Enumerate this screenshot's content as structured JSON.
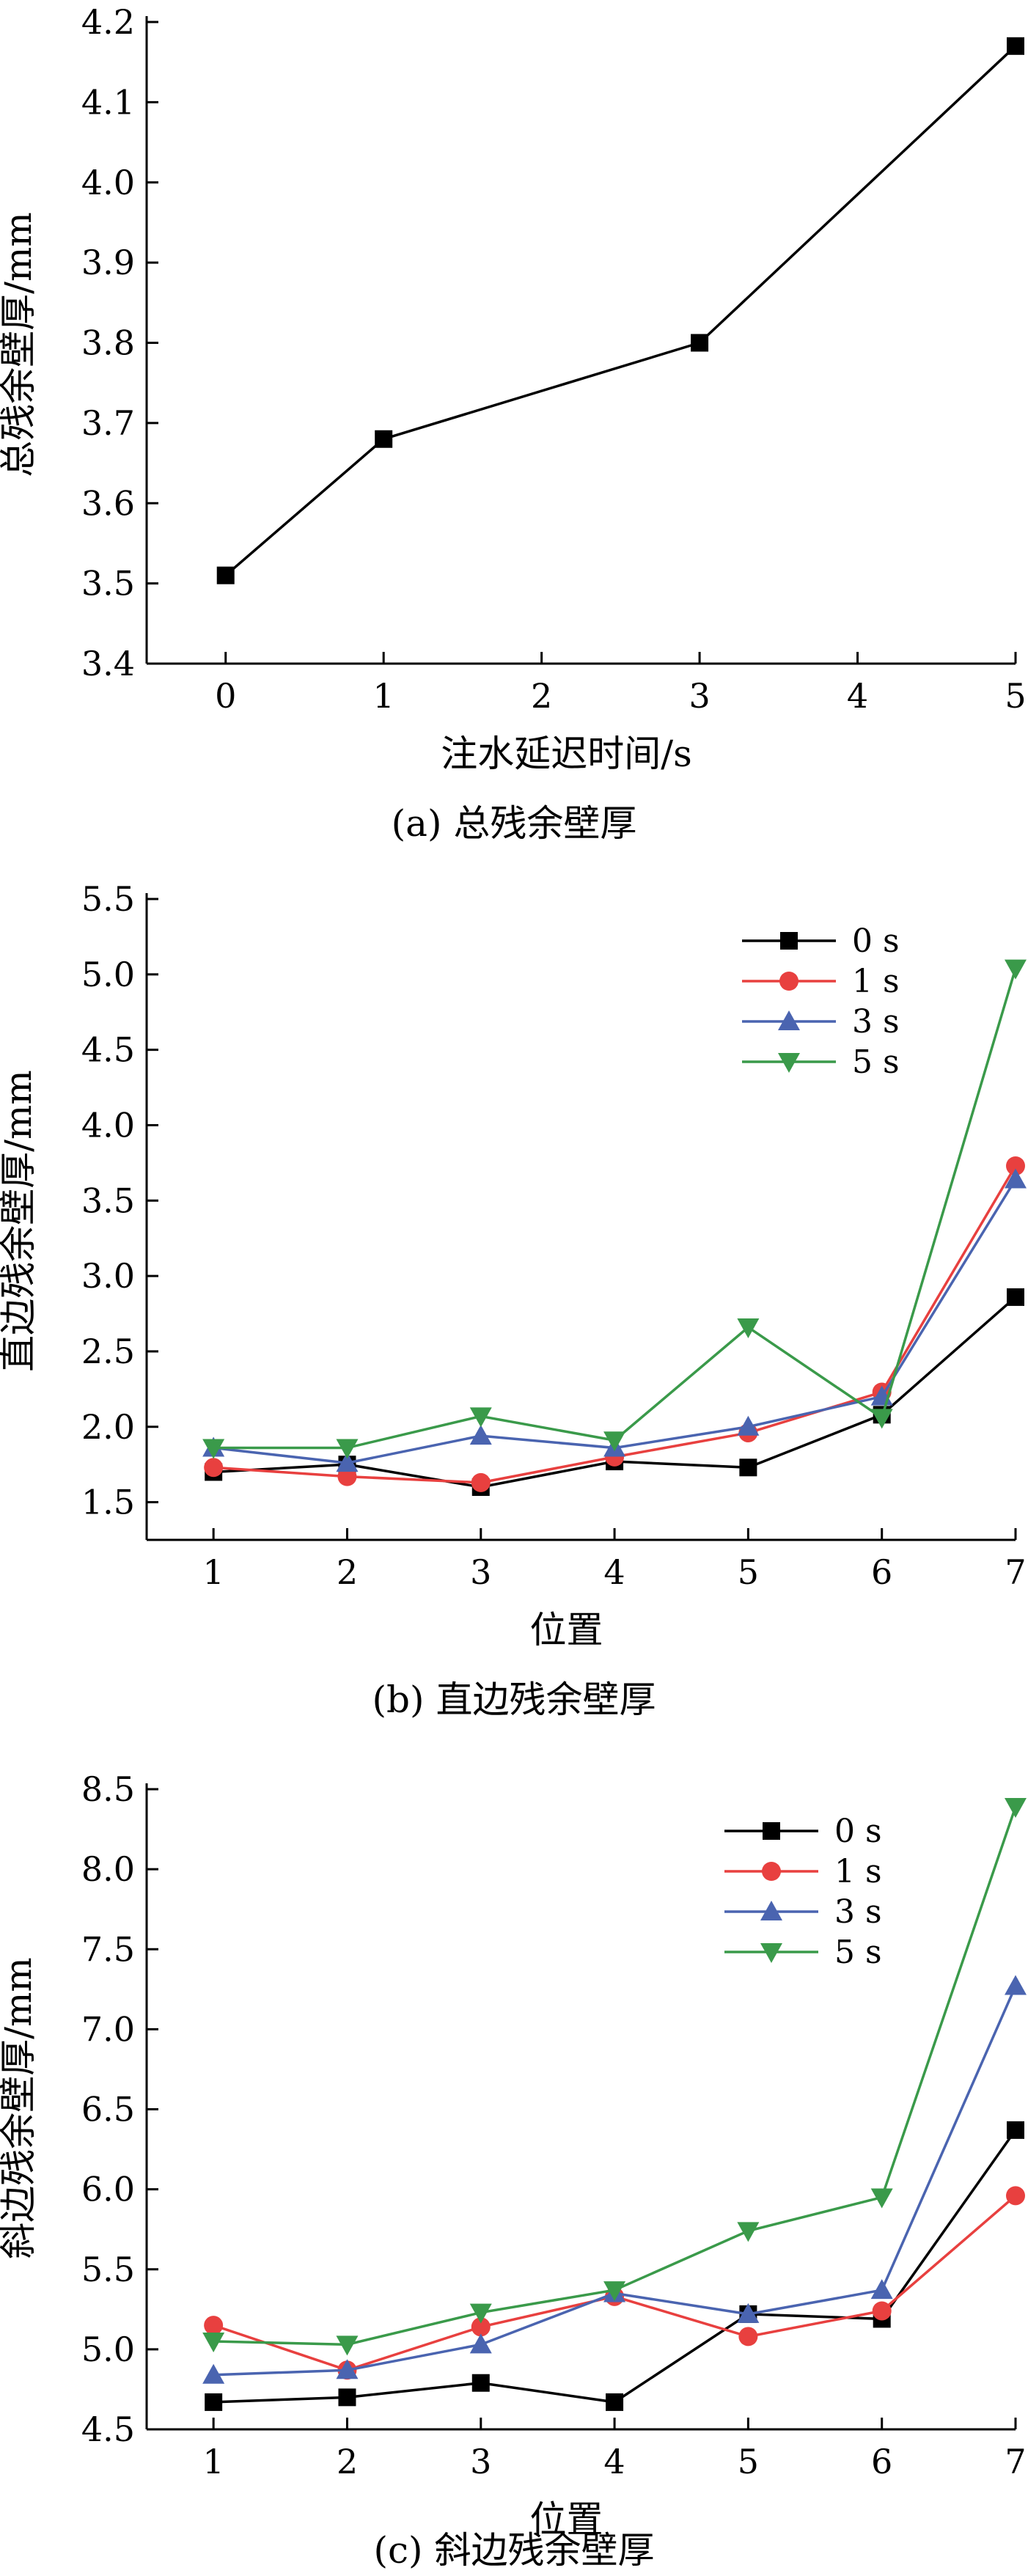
{
  "chart_data": [
    {
      "type": "line",
      "title": "",
      "caption": "(a) 总残余壁厚",
      "xlabel": "注水延迟时间/s",
      "ylabel": "总残余壁厚/mm",
      "xlim": [
        -0.5,
        5
      ],
      "ylim": [
        3.4,
        4.2
      ],
      "x_ticks": [
        0,
        1,
        2,
        3,
        4,
        5
      ],
      "y_ticks": [
        3.4,
        3.5,
        3.6,
        3.7,
        3.8,
        3.9,
        4.0,
        4.1,
        4.2
      ],
      "x_tick_labels": [
        "0",
        "1",
        "2",
        "3",
        "4",
        "5"
      ],
      "y_tick_labels": [
        "3.4",
        "3.5",
        "3.6",
        "3.7",
        "3.8",
        "3.9",
        "4.0",
        "4.1",
        "4.2"
      ],
      "grid": false,
      "legend": null,
      "series": [
        {
          "name": "",
          "color": "#000000",
          "marker": "square",
          "x": [
            0,
            1,
            3,
            5
          ],
          "y": [
            3.51,
            3.68,
            3.8,
            4.17
          ]
        }
      ]
    },
    {
      "type": "line",
      "title": "",
      "caption": "(b) 直边残余壁厚",
      "xlabel": "位置",
      "ylabel": "直边残余壁厚/mm",
      "xlim": [
        0.5,
        7
      ],
      "ylim": [
        1.25,
        5.5
      ],
      "x_ticks": [
        1,
        2,
        3,
        4,
        5,
        6,
        7
      ],
      "y_ticks": [
        1.5,
        2.0,
        2.5,
        3.0,
        3.5,
        4.0,
        4.5,
        5.0,
        5.5
      ],
      "x_tick_labels": [
        "1",
        "2",
        "3",
        "4",
        "5",
        "6",
        "7"
      ],
      "y_tick_labels": [
        "1.5",
        "2.0",
        "2.5",
        "3.0",
        "3.5",
        "4.0",
        "4.5",
        "5.0",
        "5.5"
      ],
      "grid": false,
      "legend": "top-right",
      "series": [
        {
          "name": "0 s",
          "color": "#000000",
          "marker": "square",
          "x": [
            1,
            2,
            3,
            4,
            5,
            6,
            7
          ],
          "y": [
            1.7,
            1.75,
            1.6,
            1.77,
            1.73,
            2.08,
            2.86
          ]
        },
        {
          "name": "1 s",
          "color": "#e8403f",
          "marker": "circle",
          "x": [
            1,
            2,
            3,
            4,
            5,
            6,
            7
          ],
          "y": [
            1.73,
            1.67,
            1.63,
            1.8,
            1.96,
            2.23,
            3.73
          ]
        },
        {
          "name": "3 s",
          "color": "#4a64b0",
          "marker": "triangle-up",
          "x": [
            1,
            2,
            3,
            4,
            5,
            6,
            7
          ],
          "y": [
            1.86,
            1.76,
            1.94,
            1.86,
            2.0,
            2.2,
            3.64
          ]
        },
        {
          "name": "5 s",
          "color": "#3a9a4a",
          "marker": "triangle-down",
          "x": [
            1,
            2,
            3,
            4,
            5,
            6,
            7
          ],
          "y": [
            1.86,
            1.86,
            2.07,
            1.91,
            2.66,
            2.06,
            5.04
          ]
        }
      ]
    },
    {
      "type": "line",
      "title": "",
      "caption": "(c) 斜边残余壁厚",
      "xlabel": "位置",
      "ylabel": "斜边残余壁厚/mm",
      "xlim": [
        0.5,
        7
      ],
      "ylim": [
        4.5,
        8.5
      ],
      "x_ticks": [
        1,
        2,
        3,
        4,
        5,
        6,
        7
      ],
      "y_ticks": [
        4.5,
        5.0,
        5.5,
        6.0,
        6.5,
        7.0,
        7.5,
        8.0,
        8.5
      ],
      "x_tick_labels": [
        "1",
        "2",
        "3",
        "4",
        "5",
        "6",
        "7"
      ],
      "y_tick_labels": [
        "4.5",
        "5.0",
        "5.5",
        "6.0",
        "6.5",
        "7.0",
        "7.5",
        "8.0",
        "8.5"
      ],
      "grid": false,
      "legend": "top-right",
      "series": [
        {
          "name": "0 s",
          "color": "#000000",
          "marker": "square",
          "x": [
            1,
            2,
            3,
            4,
            5,
            6,
            7
          ],
          "y": [
            4.67,
            4.7,
            4.79,
            4.67,
            5.22,
            5.19,
            6.37
          ]
        },
        {
          "name": "1 s",
          "color": "#e8403f",
          "marker": "circle",
          "x": [
            1,
            2,
            3,
            4,
            5,
            6,
            7
          ],
          "y": [
            5.15,
            4.87,
            5.14,
            5.33,
            5.08,
            5.24,
            5.96
          ]
        },
        {
          "name": "3 s",
          "color": "#4a64b0",
          "marker": "triangle-up",
          "x": [
            1,
            2,
            3,
            4,
            5,
            6,
            7
          ],
          "y": [
            4.84,
            4.87,
            5.03,
            5.35,
            5.22,
            5.37,
            7.27
          ]
        },
        {
          "name": "5 s",
          "color": "#3a9a4a",
          "marker": "triangle-down",
          "x": [
            1,
            2,
            3,
            4,
            5,
            6,
            7
          ],
          "y": [
            5.05,
            5.03,
            5.23,
            5.37,
            5.74,
            5.95,
            8.39
          ]
        }
      ]
    }
  ]
}
